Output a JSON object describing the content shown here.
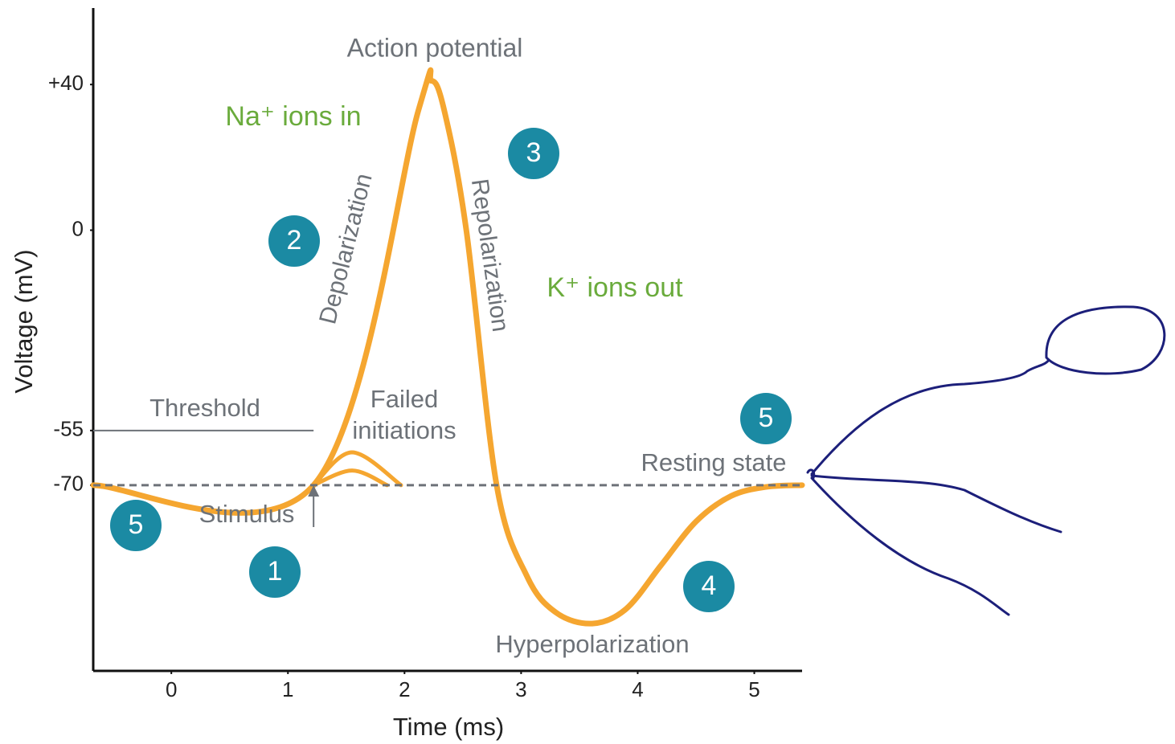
{
  "chart_data": {
    "type": "line",
    "title": "Action potential",
    "x_label": "Time (ms)",
    "y_label": "Voltage (mV)",
    "xlim": [
      -0.67,
      5.41
    ],
    "ylim": [
      -121,
      61
    ],
    "xticks": [
      0,
      1,
      2,
      3,
      4,
      5
    ],
    "yticks": [
      {
        "value": 40,
        "label": "+40"
      },
      0,
      -55,
      -70
    ],
    "color": "#f5a630",
    "series": [
      {
        "x": [
          -0.67,
          1.22,
          2.12,
          2.23,
          2.34,
          2.53,
          2.79,
          3.05,
          3.3,
          3.61,
          3.9,
          4.2,
          4.5,
          4.8,
          5.1,
          5.41
        ],
        "values": [
          -70,
          -70,
          33,
          41,
          33,
          0,
          -70,
          -95,
          -105,
          -108,
          -104,
          -92,
          -80,
          -73,
          -70.5,
          -70
        ]
      },
      {
        "x": [
          1.22,
          1.55,
          1.97
        ],
        "values": [
          -70,
          -61,
          -70
        ]
      },
      {
        "x": [
          1.22,
          1.55,
          1.85
        ],
        "values": [
          -70,
          -66,
          -70
        ]
      }
    ],
    "threshold": {
      "label": "Threshold",
      "value": -55
    },
    "resting": {
      "label": "Resting state",
      "value": -70
    },
    "stimulus": {
      "label": "Stimulus",
      "x": 1.22
    },
    "annotations": {
      "na": "Na⁺ ions in",
      "k": "K⁺ ions out",
      "depolarization": "Depolarization",
      "repolarization": "Repolarization",
      "failed": [
        "Failed",
        "initiations"
      ],
      "hyperpolarization": "Hyperpolarization"
    },
    "steps": [
      5,
      1,
      2,
      3,
      4,
      5
    ]
  }
}
